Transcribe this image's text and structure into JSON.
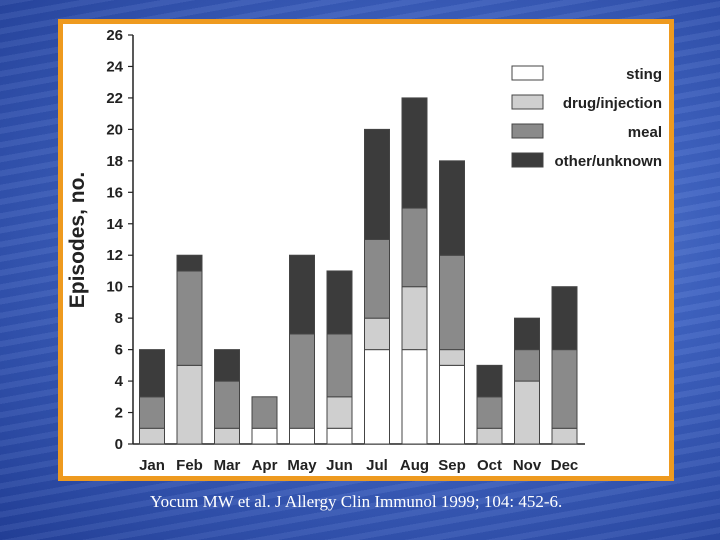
{
  "citation": "Yocum MW et al.  J Allergy Clin Immunol 1999; 104: 452-6.",
  "colors": {
    "sting": "#ffffff",
    "drug_injection": "#cfcfcf",
    "meal": "#8a8a8a",
    "other_unknown": "#3c3c3c",
    "frame": "#ee9a1f"
  },
  "chart_data": {
    "type": "bar",
    "stacked": true,
    "title": "",
    "xlabel": "",
    "ylabel": "Episodes, no.",
    "ylim": [
      0,
      26
    ],
    "yticks": [
      "0",
      "2",
      "4",
      "6",
      "8",
      "10",
      "12",
      "14",
      "16",
      "18",
      "20",
      "22",
      "24",
      "26"
    ],
    "categories": [
      "Jan",
      "Feb",
      "Mar",
      "Apr",
      "May",
      "Jun",
      "Jul",
      "Aug",
      "Sep",
      "Oct",
      "Nov",
      "Dec"
    ],
    "series": [
      {
        "name": "sting",
        "values": [
          0,
          0,
          0,
          1,
          1,
          1,
          6,
          6,
          5,
          0,
          0,
          0
        ]
      },
      {
        "name": "drug/injection",
        "values": [
          1,
          5,
          1,
          0,
          0,
          2,
          2,
          4,
          1,
          1,
          4,
          1
        ]
      },
      {
        "name": "meal",
        "values": [
          2,
          6,
          3,
          2,
          6,
          4,
          5,
          5,
          6,
          2,
          2,
          5
        ]
      },
      {
        "name": "other/unknown",
        "values": [
          3,
          1,
          2,
          0,
          5,
          4,
          7,
          7,
          6,
          2,
          2,
          4
        ]
      }
    ],
    "legend": "top-right",
    "grid": false
  }
}
